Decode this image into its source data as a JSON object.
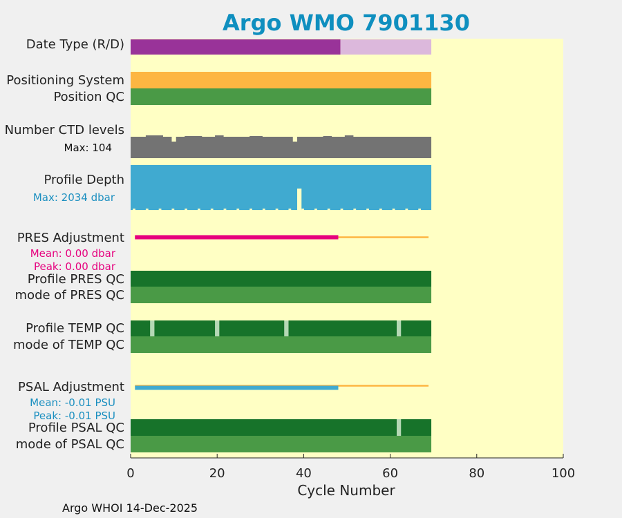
{
  "footer": "Argo WHOI 14-Dec-2025",
  "chart_data": {
    "type": "bar",
    "title": "Argo WMO 7901130",
    "xlabel": "Cycle Number",
    "xlim": [
      0,
      100
    ],
    "xticks": [
      0,
      20,
      40,
      60,
      80,
      100
    ],
    "last_cycle": 69,
    "colors": {
      "plot_bg": "#ffffc4",
      "date_type_realtime": "#993399",
      "date_type_delayed": "#dcb8dc",
      "positioning_system": "#fdb642",
      "qc_good": "#4a9a46",
      "qc_profile_good": "#17732a",
      "qc_flag": "#b5d8b5",
      "ctd": "#737373",
      "depth": "#40aad0",
      "pres_adjust": "#e6007e",
      "psal_adjust": "#40aad0",
      "adjust_limit": "#fdb642"
    },
    "rows": {
      "date_type": {
        "label": "Date Type (R/D)",
        "delayed_mode_until_cycle": 48
      },
      "positioning": {
        "label": "Positioning System",
        "qc_label": "Position QC"
      },
      "ctd_levels": {
        "label": "Number CTD levels",
        "max_label": "Max: 104",
        "max": 104,
        "dip_cycles": [
          10,
          38
        ]
      },
      "profile_depth": {
        "label": "Profile Depth",
        "max_label": "Max: 2034 dbar",
        "max": 2034,
        "shallow_cycle": 39
      },
      "pres_adjustment": {
        "label": "PRES Adjustment",
        "mean_label": "Mean: 0.00 dbar",
        "peak_label": "Peak: 0.00 dbar",
        "adjusted_until_cycle": 48
      },
      "pres_qc": {
        "label": "Profile PRES QC",
        "mode_label": "mode of PRES QC"
      },
      "temp_qc": {
        "label": "Profile TEMP QC",
        "mode_label": "mode of TEMP QC",
        "flagged_cycles": [
          5,
          20,
          36,
          62
        ]
      },
      "psal_adjustment": {
        "label": "PSAL Adjustment",
        "mean_label": "Mean: -0.01 PSU",
        "peak_label": "Peak: -0.01 PSU",
        "adjusted_until_cycle": 48
      },
      "psal_qc": {
        "label": "Profile PSAL QC",
        "mode_label": "mode of PSAL QC",
        "flagged_cycles": [
          62
        ]
      }
    }
  }
}
